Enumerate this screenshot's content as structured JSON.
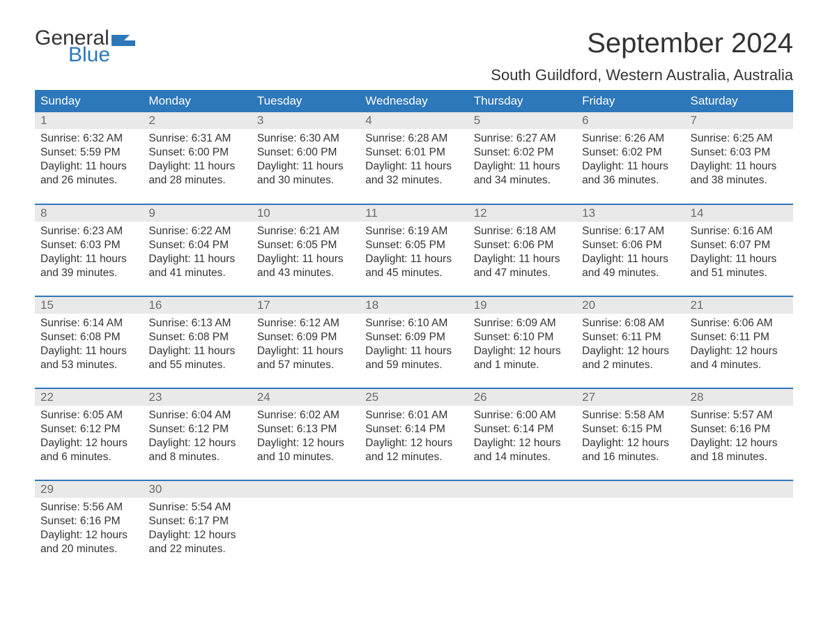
{
  "logo": {
    "word1": "General",
    "word2": "Blue",
    "flag_color": "#2d77bb"
  },
  "title": "September 2024",
  "location": "South Guildford, Western Australia, Australia",
  "colors": {
    "header_bg": "#2d77bb",
    "header_text": "#ffffff",
    "daynum_bg": "#e9e9e9",
    "daynum_text": "#6b6b6b",
    "body_text": "#333333",
    "page_bg": "#ffffff",
    "week_rule": "#2d77bb"
  },
  "fonts": {
    "title_size": 40,
    "location_size": 22,
    "header_size": 17,
    "daynum_size": 17,
    "body_size": 15.5,
    "logo_size": 30
  },
  "columns": [
    "Sunday",
    "Monday",
    "Tuesday",
    "Wednesday",
    "Thursday",
    "Friday",
    "Saturday"
  ],
  "weeks": [
    [
      {
        "n": "1",
        "sunrise": "Sunrise: 6:32 AM",
        "sunset": "Sunset: 5:59 PM",
        "dl1": "Daylight: 11 hours",
        "dl2": "and 26 minutes."
      },
      {
        "n": "2",
        "sunrise": "Sunrise: 6:31 AM",
        "sunset": "Sunset: 6:00 PM",
        "dl1": "Daylight: 11 hours",
        "dl2": "and 28 minutes."
      },
      {
        "n": "3",
        "sunrise": "Sunrise: 6:30 AM",
        "sunset": "Sunset: 6:00 PM",
        "dl1": "Daylight: 11 hours",
        "dl2": "and 30 minutes."
      },
      {
        "n": "4",
        "sunrise": "Sunrise: 6:28 AM",
        "sunset": "Sunset: 6:01 PM",
        "dl1": "Daylight: 11 hours",
        "dl2": "and 32 minutes."
      },
      {
        "n": "5",
        "sunrise": "Sunrise: 6:27 AM",
        "sunset": "Sunset: 6:02 PM",
        "dl1": "Daylight: 11 hours",
        "dl2": "and 34 minutes."
      },
      {
        "n": "6",
        "sunrise": "Sunrise: 6:26 AM",
        "sunset": "Sunset: 6:02 PM",
        "dl1": "Daylight: 11 hours",
        "dl2": "and 36 minutes."
      },
      {
        "n": "7",
        "sunrise": "Sunrise: 6:25 AM",
        "sunset": "Sunset: 6:03 PM",
        "dl1": "Daylight: 11 hours",
        "dl2": "and 38 minutes."
      }
    ],
    [
      {
        "n": "8",
        "sunrise": "Sunrise: 6:23 AM",
        "sunset": "Sunset: 6:03 PM",
        "dl1": "Daylight: 11 hours",
        "dl2": "and 39 minutes."
      },
      {
        "n": "9",
        "sunrise": "Sunrise: 6:22 AM",
        "sunset": "Sunset: 6:04 PM",
        "dl1": "Daylight: 11 hours",
        "dl2": "and 41 minutes."
      },
      {
        "n": "10",
        "sunrise": "Sunrise: 6:21 AM",
        "sunset": "Sunset: 6:05 PM",
        "dl1": "Daylight: 11 hours",
        "dl2": "and 43 minutes."
      },
      {
        "n": "11",
        "sunrise": "Sunrise: 6:19 AM",
        "sunset": "Sunset: 6:05 PM",
        "dl1": "Daylight: 11 hours",
        "dl2": "and 45 minutes."
      },
      {
        "n": "12",
        "sunrise": "Sunrise: 6:18 AM",
        "sunset": "Sunset: 6:06 PM",
        "dl1": "Daylight: 11 hours",
        "dl2": "and 47 minutes."
      },
      {
        "n": "13",
        "sunrise": "Sunrise: 6:17 AM",
        "sunset": "Sunset: 6:06 PM",
        "dl1": "Daylight: 11 hours",
        "dl2": "and 49 minutes."
      },
      {
        "n": "14",
        "sunrise": "Sunrise: 6:16 AM",
        "sunset": "Sunset: 6:07 PM",
        "dl1": "Daylight: 11 hours",
        "dl2": "and 51 minutes."
      }
    ],
    [
      {
        "n": "15",
        "sunrise": "Sunrise: 6:14 AM",
        "sunset": "Sunset: 6:08 PM",
        "dl1": "Daylight: 11 hours",
        "dl2": "and 53 minutes."
      },
      {
        "n": "16",
        "sunrise": "Sunrise: 6:13 AM",
        "sunset": "Sunset: 6:08 PM",
        "dl1": "Daylight: 11 hours",
        "dl2": "and 55 minutes."
      },
      {
        "n": "17",
        "sunrise": "Sunrise: 6:12 AM",
        "sunset": "Sunset: 6:09 PM",
        "dl1": "Daylight: 11 hours",
        "dl2": "and 57 minutes."
      },
      {
        "n": "18",
        "sunrise": "Sunrise: 6:10 AM",
        "sunset": "Sunset: 6:09 PM",
        "dl1": "Daylight: 11 hours",
        "dl2": "and 59 minutes."
      },
      {
        "n": "19",
        "sunrise": "Sunrise: 6:09 AM",
        "sunset": "Sunset: 6:10 PM",
        "dl1": "Daylight: 12 hours",
        "dl2": "and 1 minute."
      },
      {
        "n": "20",
        "sunrise": "Sunrise: 6:08 AM",
        "sunset": "Sunset: 6:11 PM",
        "dl1": "Daylight: 12 hours",
        "dl2": "and 2 minutes."
      },
      {
        "n": "21",
        "sunrise": "Sunrise: 6:06 AM",
        "sunset": "Sunset: 6:11 PM",
        "dl1": "Daylight: 12 hours",
        "dl2": "and 4 minutes."
      }
    ],
    [
      {
        "n": "22",
        "sunrise": "Sunrise: 6:05 AM",
        "sunset": "Sunset: 6:12 PM",
        "dl1": "Daylight: 12 hours",
        "dl2": "and 6 minutes."
      },
      {
        "n": "23",
        "sunrise": "Sunrise: 6:04 AM",
        "sunset": "Sunset: 6:12 PM",
        "dl1": "Daylight: 12 hours",
        "dl2": "and 8 minutes."
      },
      {
        "n": "24",
        "sunrise": "Sunrise: 6:02 AM",
        "sunset": "Sunset: 6:13 PM",
        "dl1": "Daylight: 12 hours",
        "dl2": "and 10 minutes."
      },
      {
        "n": "25",
        "sunrise": "Sunrise: 6:01 AM",
        "sunset": "Sunset: 6:14 PM",
        "dl1": "Daylight: 12 hours",
        "dl2": "and 12 minutes."
      },
      {
        "n": "26",
        "sunrise": "Sunrise: 6:00 AM",
        "sunset": "Sunset: 6:14 PM",
        "dl1": "Daylight: 12 hours",
        "dl2": "and 14 minutes."
      },
      {
        "n": "27",
        "sunrise": "Sunrise: 5:58 AM",
        "sunset": "Sunset: 6:15 PM",
        "dl1": "Daylight: 12 hours",
        "dl2": "and 16 minutes."
      },
      {
        "n": "28",
        "sunrise": "Sunrise: 5:57 AM",
        "sunset": "Sunset: 6:16 PM",
        "dl1": "Daylight: 12 hours",
        "dl2": "and 18 minutes."
      }
    ],
    [
      {
        "n": "29",
        "sunrise": "Sunrise: 5:56 AM",
        "sunset": "Sunset: 6:16 PM",
        "dl1": "Daylight: 12 hours",
        "dl2": "and 20 minutes."
      },
      {
        "n": "30",
        "sunrise": "Sunrise: 5:54 AM",
        "sunset": "Sunset: 6:17 PM",
        "dl1": "Daylight: 12 hours",
        "dl2": "and 22 minutes."
      },
      null,
      null,
      null,
      null,
      null
    ]
  ]
}
